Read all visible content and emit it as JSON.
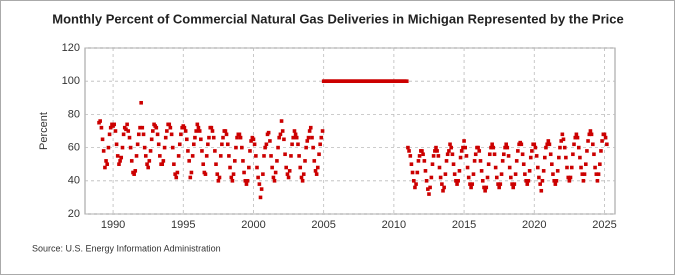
{
  "chart_data": {
    "type": "scatter",
    "title": "Monthly Percent of Commercial Natural Gas Deliveries in Michigan Represented by the Price",
    "y_label": "Percent",
    "source": "Source: U.S. Energy Information Administration",
    "color": "#cc0000",
    "grid": true,
    "xlim": [
      1988,
      2025.75
    ],
    "ylim": [
      20,
      120
    ],
    "xticks": [
      1990,
      1995,
      2000,
      2005,
      2010,
      2015,
      2020,
      2025
    ],
    "yticks": [
      20,
      40,
      60,
      80,
      100,
      120
    ],
    "x": [
      1989,
      1989.08,
      1989.17,
      1989.25,
      1989.33,
      1989.42,
      1989.5,
      1989.58,
      1989.67,
      1989.75,
      1989.83,
      1989.92,
      1990,
      1990.08,
      1990.17,
      1990.25,
      1990.33,
      1990.42,
      1990.5,
      1990.58,
      1990.67,
      1990.75,
      1990.83,
      1990.92,
      1991,
      1991.08,
      1991.17,
      1991.25,
      1991.33,
      1991.42,
      1991.5,
      1991.58,
      1991.67,
      1991.75,
      1991.83,
      1991.92,
      1992,
      1992.08,
      1992.17,
      1992.25,
      1992.33,
      1992.42,
      1992.5,
      1992.58,
      1992.67,
      1992.75,
      1992.83,
      1992.92,
      1993,
      1993.08,
      1993.17,
      1993.25,
      1993.33,
      1993.42,
      1993.5,
      1993.58,
      1993.67,
      1993.75,
      1993.83,
      1993.92,
      1994,
      1994.08,
      1994.17,
      1994.25,
      1994.33,
      1994.42,
      1994.5,
      1994.58,
      1994.67,
      1994.75,
      1994.83,
      1994.92,
      1995,
      1995.08,
      1995.17,
      1995.25,
      1995.33,
      1995.42,
      1995.5,
      1995.58,
      1995.67,
      1995.75,
      1995.83,
      1995.92,
      1996,
      1996.08,
      1996.17,
      1996.25,
      1996.33,
      1996.42,
      1996.5,
      1996.58,
      1996.67,
      1996.75,
      1996.83,
      1996.92,
      1997,
      1997.08,
      1997.17,
      1997.25,
      1997.33,
      1997.42,
      1997.5,
      1997.58,
      1997.67,
      1997.75,
      1997.83,
      1997.92,
      1998,
      1998.08,
      1998.17,
      1998.25,
      1998.33,
      1998.42,
      1998.5,
      1998.58,
      1998.67,
      1998.75,
      1998.83,
      1998.92,
      1999,
      1999.08,
      1999.17,
      1999.25,
      1999.33,
      1999.42,
      1999.5,
      1999.58,
      1999.67,
      1999.75,
      1999.83,
      1999.92,
      2000,
      2000.08,
      2000.17,
      2000.25,
      2000.33,
      2000.42,
      2000.5,
      2000.58,
      2000.67,
      2000.75,
      2000.83,
      2000.92,
      2001,
      2001.08,
      2001.17,
      2001.25,
      2001.33,
      2001.42,
      2001.5,
      2001.58,
      2001.67,
      2001.75,
      2001.83,
      2001.92,
      2002,
      2002.08,
      2002.17,
      2002.25,
      2002.33,
      2002.42,
      2002.5,
      2002.58,
      2002.67,
      2002.75,
      2002.83,
      2002.92,
      2003,
      2003.08,
      2003.17,
      2003.25,
      2003.33,
      2003.42,
      2003.5,
      2003.58,
      2003.67,
      2003.75,
      2003.83,
      2003.92,
      2004,
      2004.08,
      2004.17,
      2004.25,
      2004.33,
      2004.42,
      2004.5,
      2004.58,
      2004.67,
      2004.75,
      2004.83,
      2004.92,
      2005,
      2005.08,
      2005.17,
      2005.25,
      2005.33,
      2005.42,
      2005.5,
      2005.58,
      2005.67,
      2005.75,
      2005.83,
      2005.92,
      2006,
      2006.08,
      2006.17,
      2006.25,
      2006.33,
      2006.42,
      2006.5,
      2006.58,
      2006.67,
      2006.75,
      2006.83,
      2006.92,
      2007,
      2007.08,
      2007.17,
      2007.25,
      2007.33,
      2007.42,
      2007.5,
      2007.58,
      2007.67,
      2007.75,
      2007.83,
      2007.92,
      2008,
      2008.08,
      2008.17,
      2008.25,
      2008.33,
      2008.42,
      2008.5,
      2008.58,
      2008.67,
      2008.75,
      2008.83,
      2008.92,
      2009,
      2009.08,
      2009.17,
      2009.25,
      2009.33,
      2009.42,
      2009.5,
      2009.58,
      2009.67,
      2009.75,
      2009.83,
      2009.92,
      2010,
      2010.08,
      2010.17,
      2010.25,
      2010.33,
      2010.42,
      2010.5,
      2010.58,
      2010.67,
      2010.75,
      2010.83,
      2010.92,
      2011,
      2011.08,
      2011.17,
      2011.25,
      2011.33,
      2011.42,
      2011.5,
      2011.58,
      2011.67,
      2011.75,
      2011.83,
      2011.92,
      2012,
      2012.08,
      2012.17,
      2012.25,
      2012.33,
      2012.42,
      2012.5,
      2012.58,
      2012.67,
      2012.75,
      2012.83,
      2012.92,
      2013,
      2013.08,
      2013.17,
      2013.25,
      2013.33,
      2013.42,
      2013.5,
      2013.58,
      2013.67,
      2013.75,
      2013.83,
      2013.92,
      2014,
      2014.08,
      2014.17,
      2014.25,
      2014.33,
      2014.42,
      2014.5,
      2014.58,
      2014.67,
      2014.75,
      2014.83,
      2014.92,
      2015,
      2015.08,
      2015.17,
      2015.25,
      2015.33,
      2015.42,
      2015.5,
      2015.58,
      2015.67,
      2015.75,
      2015.83,
      2015.92,
      2016,
      2016.08,
      2016.17,
      2016.25,
      2016.33,
      2016.42,
      2016.5,
      2016.58,
      2016.67,
      2016.75,
      2016.83,
      2016.92,
      2017,
      2017.08,
      2017.17,
      2017.25,
      2017.33,
      2017.42,
      2017.5,
      2017.58,
      2017.67,
      2017.75,
      2017.83,
      2017.92,
      2018,
      2018.08,
      2018.17,
      2018.25,
      2018.33,
      2018.42,
      2018.5,
      2018.58,
      2018.67,
      2018.75,
      2018.83,
      2018.92,
      2019,
      2019.08,
      2019.17,
      2019.25,
      2019.33,
      2019.42,
      2019.5,
      2019.58,
      2019.67,
      2019.75,
      2019.83,
      2019.92,
      2020,
      2020.08,
      2020.17,
      2020.25,
      2020.33,
      2020.42,
      2020.5,
      2020.58,
      2020.67,
      2020.75,
      2020.83,
      2020.92,
      2021,
      2021.08,
      2021.17,
      2021.25,
      2021.33,
      2021.42,
      2021.5,
      2021.58,
      2021.67,
      2021.75,
      2021.83,
      2021.92,
      2022,
      2022.08,
      2022.17,
      2022.25,
      2022.33,
      2022.42,
      2022.5,
      2022.58,
      2022.67,
      2022.75,
      2022.83,
      2022.92,
      2023,
      2023.08,
      2023.17,
      2023.25,
      2023.33,
      2023.42,
      2023.5,
      2023.58,
      2023.67,
      2023.75,
      2023.83,
      2023.92,
      2024,
      2024.08,
      2024.17,
      2024.25,
      2024.33,
      2024.42,
      2024.5,
      2024.58,
      2024.67,
      2024.75,
      2024.83,
      2024.92,
      2025,
      2025.08,
      2025.17
    ],
    "values": [
      75,
      76,
      72,
      65,
      58,
      48,
      52,
      50,
      60,
      68,
      72,
      74,
      73,
      74,
      70,
      62,
      55,
      50,
      52,
      54,
      60,
      68,
      72,
      71,
      74,
      70,
      66,
      60,
      52,
      45,
      44,
      46,
      55,
      62,
      68,
      72,
      87,
      72,
      68,
      60,
      55,
      50,
      48,
      52,
      58,
      65,
      70,
      74,
      73,
      72,
      68,
      62,
      55,
      50,
      50,
      52,
      60,
      66,
      70,
      74,
      74,
      72,
      68,
      60,
      50,
      44,
      42,
      45,
      55,
      62,
      68,
      72,
      73,
      72,
      70,
      65,
      58,
      52,
      42,
      45,
      55,
      62,
      66,
      70,
      74,
      72,
      70,
      65,
      58,
      50,
      45,
      44,
      55,
      62,
      66,
      72,
      72,
      70,
      66,
      58,
      50,
      44,
      40,
      42,
      55,
      62,
      66,
      70,
      70,
      68,
      62,
      55,
      48,
      42,
      40,
      44,
      52,
      60,
      66,
      68,
      68,
      66,
      60,
      52,
      45,
      40,
      38,
      40,
      48,
      58,
      64,
      66,
      65,
      62,
      55,
      48,
      42,
      38,
      30,
      35,
      44,
      55,
      60,
      62,
      68,
      69,
      64,
      55,
      48,
      42,
      40,
      45,
      52,
      60,
      66,
      68,
      76,
      70,
      65,
      56,
      48,
      44,
      42,
      46,
      55,
      62,
      66,
      70,
      68,
      66,
      62,
      55,
      48,
      42,
      40,
      44,
      52,
      60,
      64,
      66,
      70,
      72,
      66,
      60,
      52,
      46,
      44,
      48,
      56,
      62,
      66,
      70,
      100,
      100,
      100,
      100,
      100,
      100,
      100,
      100,
      100,
      100,
      100,
      100,
      100,
      100,
      100,
      100,
      100,
      100,
      100,
      100,
      100,
      100,
      100,
      100,
      100,
      100,
      100,
      100,
      100,
      100,
      100,
      100,
      100,
      100,
      100,
      100,
      100,
      100,
      100,
      100,
      100,
      100,
      100,
      100,
      100,
      100,
      100,
      100,
      100,
      100,
      100,
      100,
      100,
      100,
      100,
      100,
      100,
      100,
      100,
      100,
      100,
      100,
      100,
      100,
      100,
      100,
      100,
      100,
      100,
      100,
      100,
      100,
      60,
      58,
      55,
      50,
      45,
      40,
      36,
      38,
      45,
      52,
      55,
      58,
      58,
      56,
      52,
      46,
      40,
      35,
      32,
      36,
      42,
      50,
      55,
      58,
      60,
      58,
      55,
      48,
      42,
      38,
      34,
      36,
      44,
      52,
      56,
      58,
      62,
      60,
      56,
      50,
      44,
      40,
      38,
      40,
      46,
      54,
      58,
      60,
      64,
      60,
      55,
      48,
      42,
      38,
      36,
      38,
      44,
      52,
      56,
      60,
      60,
      58,
      52,
      46,
      40,
      36,
      34,
      36,
      42,
      50,
      56,
      60,
      62,
      60,
      56,
      48,
      42,
      38,
      36,
      38,
      44,
      52,
      56,
      60,
      62,
      60,
      55,
      48,
      42,
      38,
      36,
      38,
      44,
      52,
      58,
      62,
      63,
      62,
      56,
      50,
      44,
      40,
      38,
      40,
      46,
      54,
      58,
      62,
      62,
      60,
      55,
      48,
      42,
      38,
      34,
      40,
      46,
      54,
      60,
      62,
      64,
      62,
      56,
      50,
      44,
      40,
      38,
      40,
      46,
      54,
      60,
      64,
      68,
      65,
      60,
      54,
      48,
      42,
      40,
      42,
      48,
      56,
      62,
      66,
      68,
      66,
      60,
      54,
      48,
      44,
      40,
      44,
      50,
      58,
      64,
      68,
      70,
      68,
      62,
      56,
      48,
      44,
      40,
      44,
      50,
      58,
      64,
      68,
      68,
      66,
      62
    ]
  }
}
